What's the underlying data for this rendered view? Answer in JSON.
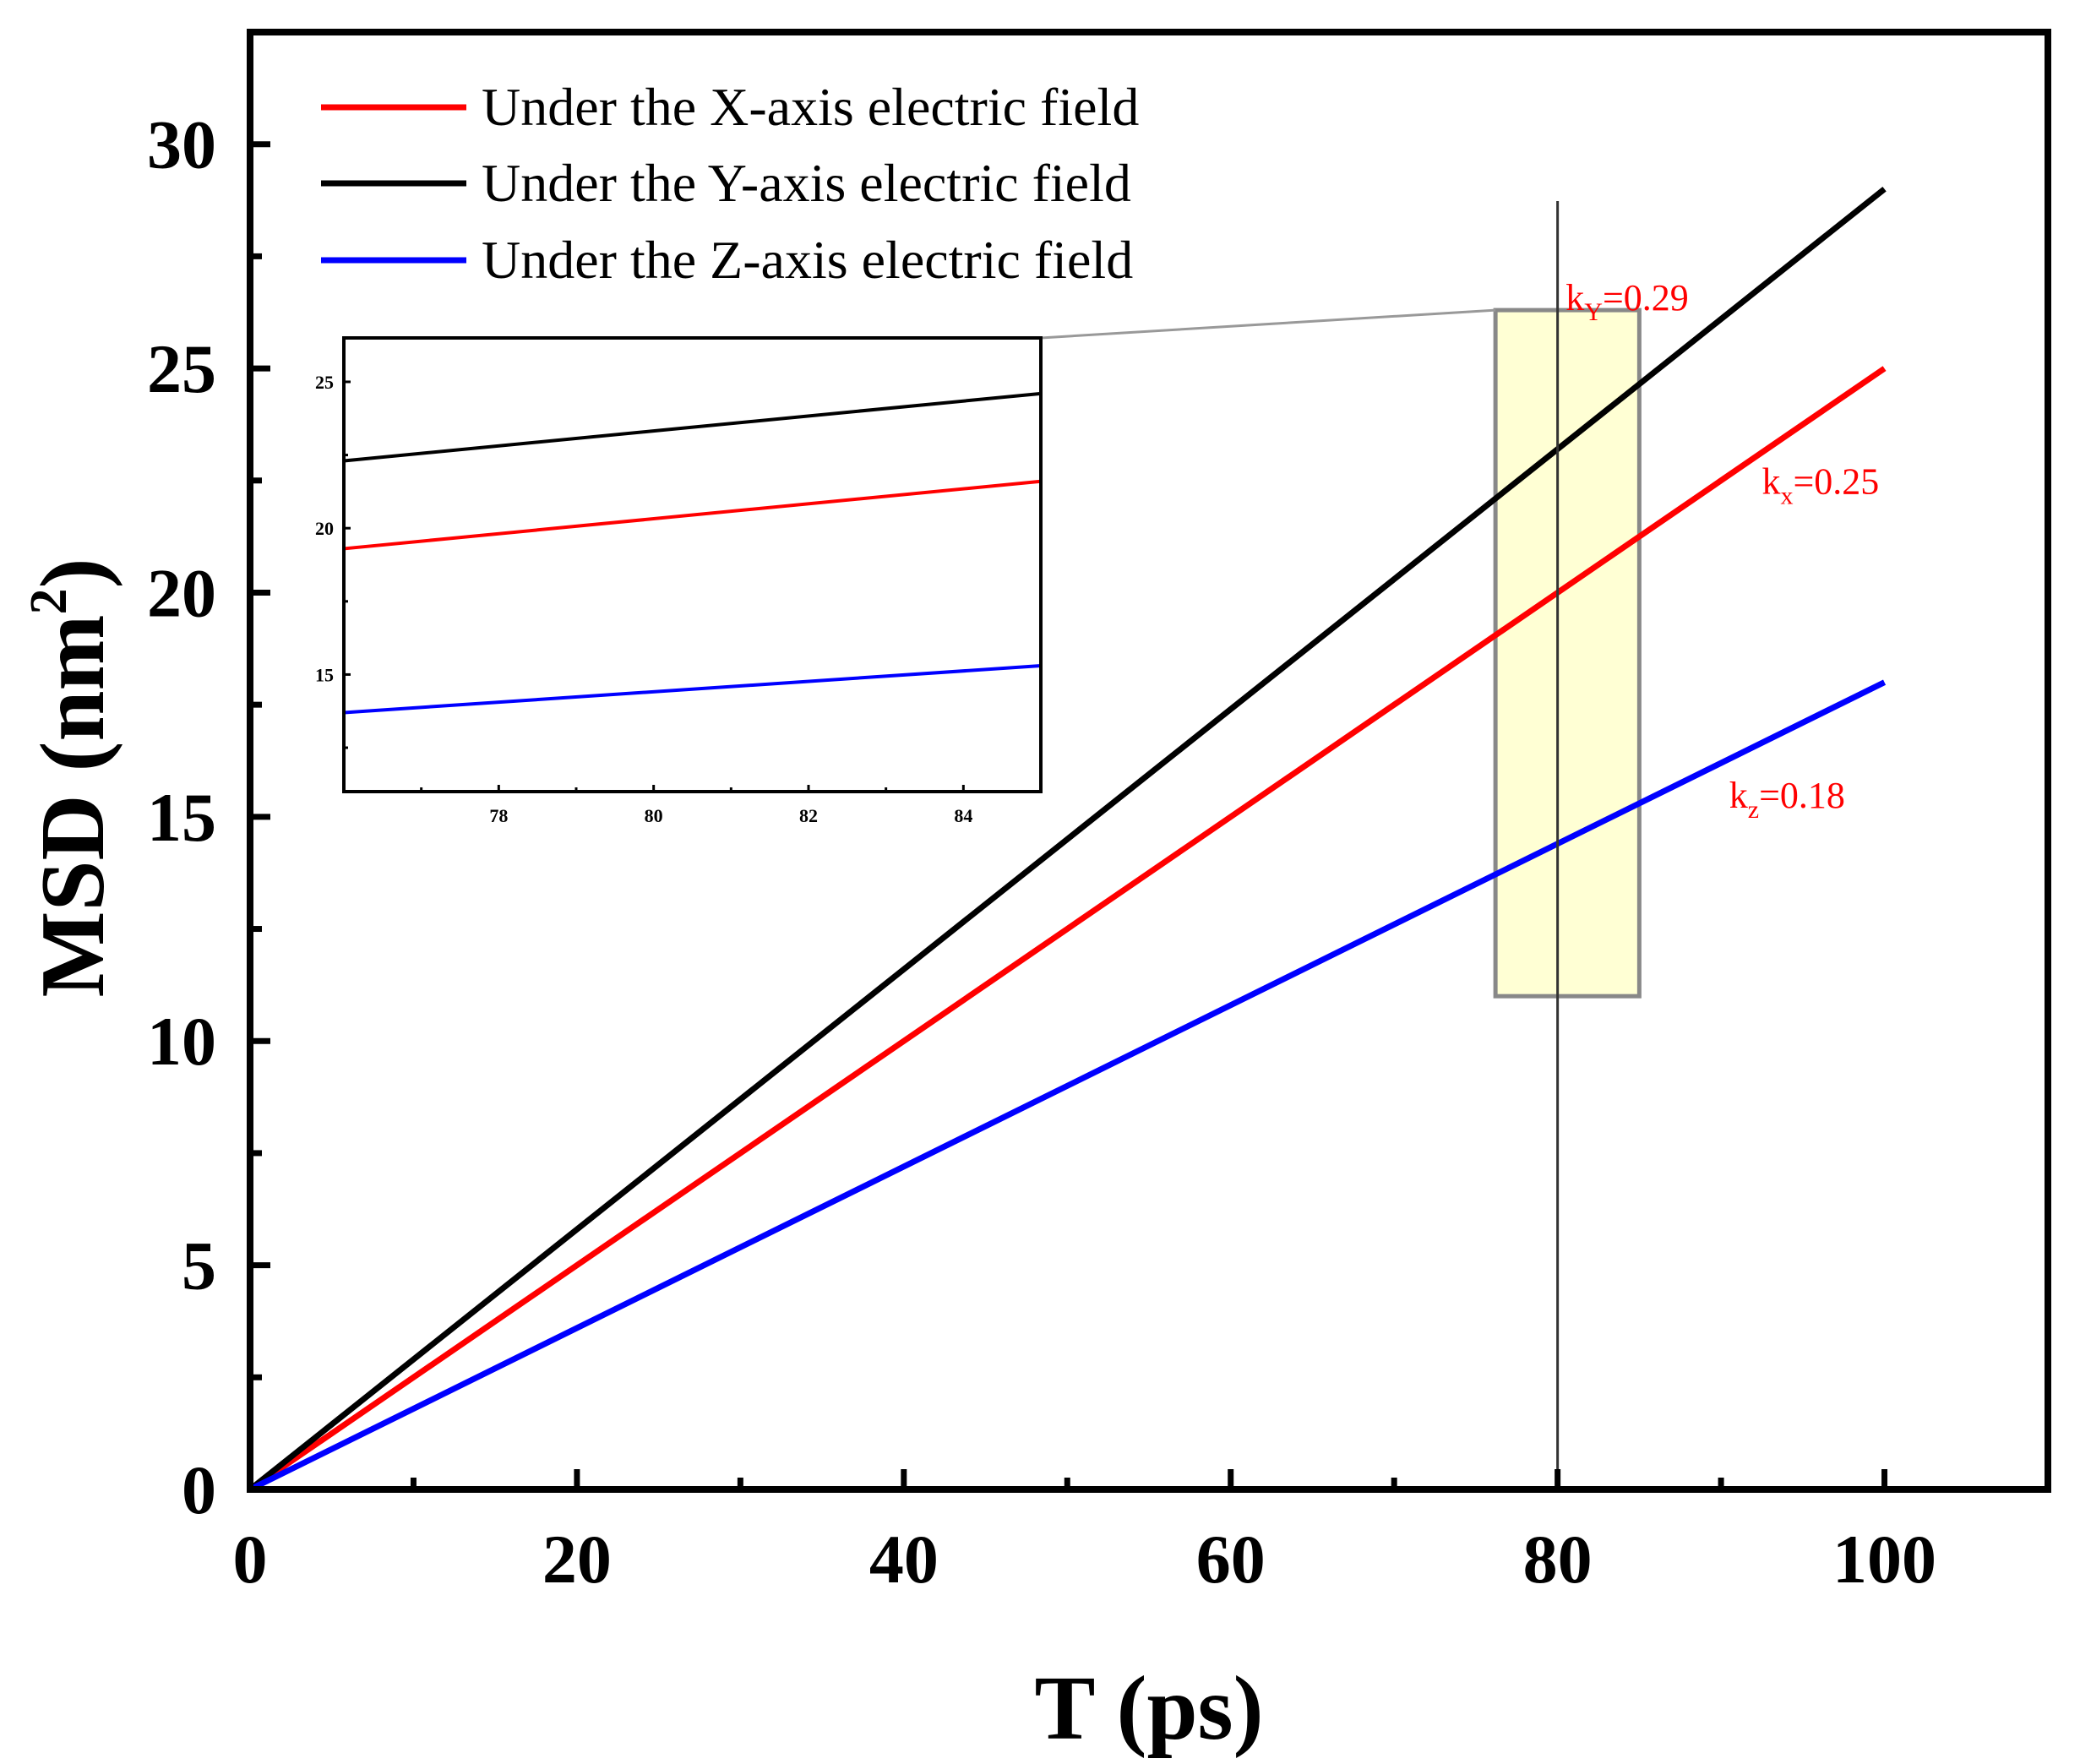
{
  "chart_data": {
    "type": "line",
    "title": "",
    "xlabel": "T (ps)",
    "ylabel_main": "MSD (nm",
    "ylabel_sup": "2",
    "ylabel_close": ")",
    "xlim": [
      0,
      110
    ],
    "ylim": [
      0,
      32.5
    ],
    "x_ticks": [
      "0",
      "20",
      "40",
      "60",
      "80",
      "100"
    ],
    "y_ticks": [
      "0",
      "5",
      "10",
      "15",
      "20",
      "25",
      "30"
    ],
    "series": [
      {
        "name": "Under the X-axis electric field",
        "color": "#ff0000",
        "x": [
          0,
          100
        ],
        "values": [
          0,
          25
        ]
      },
      {
        "name": "Under the Y-axis electric field",
        "color": "#000000",
        "x": [
          0,
          100
        ],
        "values": [
          0,
          29
        ]
      },
      {
        "name": "Under the Z-axis electric field",
        "color": "#0000ff",
        "x": [
          0,
          100
        ],
        "values": [
          0,
          18
        ]
      }
    ],
    "legend_position": "top-left",
    "annotations": [
      {
        "base": "k",
        "sub": "Y",
        "text": "=0.29",
        "color": "#ff0000",
        "x": 80.5,
        "y": 26.3
      },
      {
        "base": "k",
        "sub": "x",
        "text": "=0.25",
        "color": "#ff0000",
        "x": 92.5,
        "y": 22.2
      },
      {
        "base": "k",
        "sub": "z",
        "text": "=0.18",
        "color": "#ff0000",
        "x": 90.5,
        "y": 15.2
      }
    ],
    "vertical_line_x": 80,
    "highlight_region": {
      "x": [
        76.2,
        85
      ],
      "y": [
        11,
        26.3
      ],
      "color": "#ffffcc"
    },
    "inset": {
      "xlim": [
        76,
        85
      ],
      "ylim": [
        11,
        26.5
      ],
      "x_ticks": [
        "78",
        "80",
        "82",
        "84"
      ],
      "y_ticks": [
        "15",
        "20",
        "25"
      ],
      "series": [
        {
          "color": "#000000",
          "x": [
            76,
            85
          ],
          "values": [
            22.3,
            24.6
          ]
        },
        {
          "color": "#ff0000",
          "x": [
            76,
            85
          ],
          "values": [
            19.3,
            21.6
          ]
        },
        {
          "color": "#0000ff",
          "x": [
            76,
            85
          ],
          "values": [
            13.7,
            15.3
          ]
        }
      ]
    }
  }
}
